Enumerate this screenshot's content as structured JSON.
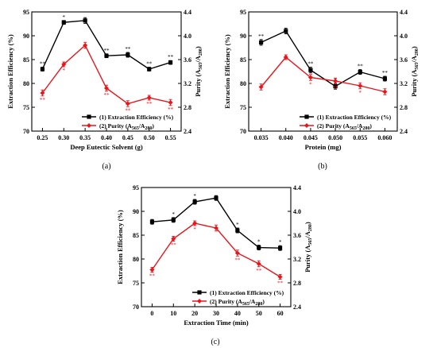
{
  "colors": {
    "ee": "#000000",
    "purity": "#e8151b",
    "axis": "#000000"
  },
  "chart_data": [
    {
      "type": "line",
      "panel_label": "(a)",
      "xlabel": "Deep Eutectic Solvent (g)",
      "ylabel_left": "Extraction Efficiency (%)",
      "ylabel_right": {
        "main": "Purity (A",
        "sub1": "565",
        "mid": "/A",
        "sub2": "280",
        "end": ")"
      },
      "x": [
        0.25,
        0.3,
        0.35,
        0.4,
        0.45,
        0.5,
        0.55
      ],
      "xticks": [
        "0.25",
        "0.30",
        "0.35",
        "0.40",
        "0.45",
        "0.50",
        "0.55"
      ],
      "xlim": [
        0.225,
        0.575
      ],
      "ylim_left": [
        70,
        95
      ],
      "yticks_left": [
        "70",
        "75",
        "80",
        "85",
        "90",
        "95"
      ],
      "ylim_right": [
        2.4,
        4.4
      ],
      "yticks_right": [
        "2.4",
        "2.8",
        "3.2",
        "3.6",
        "4.0",
        "4.4"
      ],
      "legend": {
        "position": "lower-right",
        "ee": "(1) Extraction Efficiency (%)",
        "purity": {
          "main": "(2) Purity (A",
          "sub1": "565",
          "mid": "/A",
          "sub2": "280",
          "end": ")"
        }
      },
      "series": [
        {
          "name": "(1) Extraction Efficiency (%)",
          "axis": "left",
          "values": [
            83.0,
            92.8,
            93.2,
            85.8,
            86.0,
            83.0,
            84.4
          ],
          "errors": [
            0.4,
            0.4,
            0.6,
            0.4,
            0.5,
            0.4,
            0.4
          ],
          "annotations": [
            "**",
            "*",
            "",
            "**",
            "**",
            "**",
            "**"
          ]
        },
        {
          "name": "(2) Purity (A565/A280)",
          "axis": "right",
          "values": [
            3.04,
            3.52,
            3.84,
            3.12,
            2.86,
            2.96,
            2.88
          ],
          "errors": [
            0.05,
            0.04,
            0.05,
            0.05,
            0.05,
            0.04,
            0.05
          ],
          "annotations": [
            "**",
            "*",
            "",
            "**",
            "**",
            "**",
            "**"
          ]
        }
      ]
    },
    {
      "type": "line",
      "panel_label": "(b)",
      "xlabel": "Protein (mg)",
      "ylabel_left": "Extraction Efficiency (%)",
      "ylabel_right": {
        "main": "Purity (A",
        "sub1": "565",
        "mid": "/A",
        "sub2": "280",
        "end": ")"
      },
      "x": [
        0.035,
        0.04,
        0.045,
        0.05,
        0.055,
        0.06
      ],
      "xticks": [
        "0.035",
        "0.040",
        "0.045",
        "0.050",
        "0.055",
        "0.060"
      ],
      "xlim": [
        0.0325,
        0.0625
      ],
      "ylim_left": [
        70,
        95
      ],
      "yticks_left": [
        "70",
        "75",
        "80",
        "85",
        "90",
        "95"
      ],
      "ylim_right": [
        2.4,
        4.4
      ],
      "yticks_right": [
        "2.4",
        "2.8",
        "3.2",
        "3.6",
        "4.0",
        "4.4"
      ],
      "legend": {
        "position": "lower-right",
        "ee": "(1) Extraction Efficiency (%)",
        "purity": {
          "main": "(2) Purity (A",
          "sub1": "565",
          "mid": "/A",
          "sub2": "280",
          "end": ")"
        }
      },
      "series": [
        {
          "name": "(1) Extraction Efficiency (%)",
          "axis": "left",
          "values": [
            88.6,
            91.0,
            82.8,
            79.4,
            82.4,
            81.0
          ],
          "errors": [
            0.6,
            0.6,
            0.6,
            0.6,
            0.5,
            0.5
          ],
          "annotations": [
            "**",
            "",
            "**",
            "*",
            "**",
            "**"
          ]
        },
        {
          "name": "(2) Purity (A565/A280)",
          "axis": "right",
          "values": [
            3.14,
            3.64,
            3.3,
            3.24,
            3.16,
            3.06
          ],
          "errors": [
            0.05,
            0.04,
            0.05,
            0.05,
            0.05,
            0.05
          ],
          "annotations": [
            "",
            "",
            "*",
            "**",
            "*",
            ""
          ]
        }
      ]
    },
    {
      "type": "line",
      "panel_label": "(c)",
      "xlabel": "Extraction Time (min)",
      "ylabel_left": "Extraction Efficiency (%)",
      "ylabel_right": {
        "main": "Purity (A",
        "sub1": "565",
        "mid": "/A",
        "sub2": "280",
        "end": ")"
      },
      "x": [
        0,
        10,
        20,
        30,
        40,
        50,
        60
      ],
      "xticks": [
        "0",
        "10",
        "20",
        "30",
        "40",
        "50",
        "60"
      ],
      "xlim": [
        -5,
        65
      ],
      "ylim_left": [
        70,
        95
      ],
      "yticks_left": [
        "70",
        "75",
        "80",
        "85",
        "90",
        "95"
      ],
      "ylim_right": [
        2.4,
        4.4
      ],
      "yticks_right": [
        "2.4",
        "2.8",
        "3.2",
        "3.6",
        "4.0",
        "4.4"
      ],
      "legend": {
        "position": "lower-right",
        "ee": "(1) Extraction Efficiency (%)",
        "purity": {
          "main": "(2) Purity (A",
          "sub1": "565",
          "mid": "/A",
          "sub2": "280",
          "end": ")"
        }
      },
      "series": [
        {
          "name": "(1) Extraction Efficiency (%)",
          "axis": "left",
          "values": [
            87.8,
            88.2,
            92.0,
            92.8,
            86.0,
            82.4,
            82.3
          ],
          "errors": [
            0.5,
            0.5,
            0.5,
            0.5,
            0.5,
            0.5,
            0.5
          ],
          "annotations": [
            "",
            "*",
            "*",
            "",
            "*",
            "*",
            "*"
          ]
        },
        {
          "name": "(2) Purity (A565/A280)",
          "axis": "right",
          "values": [
            3.02,
            3.54,
            3.8,
            3.72,
            3.3,
            3.12,
            2.9
          ],
          "errors": [
            0.04,
            0.04,
            0.04,
            0.05,
            0.05,
            0.05,
            0.04
          ],
          "annotations": [
            "**",
            "**",
            "*",
            "",
            "**",
            "**",
            "**"
          ]
        }
      ]
    }
  ]
}
